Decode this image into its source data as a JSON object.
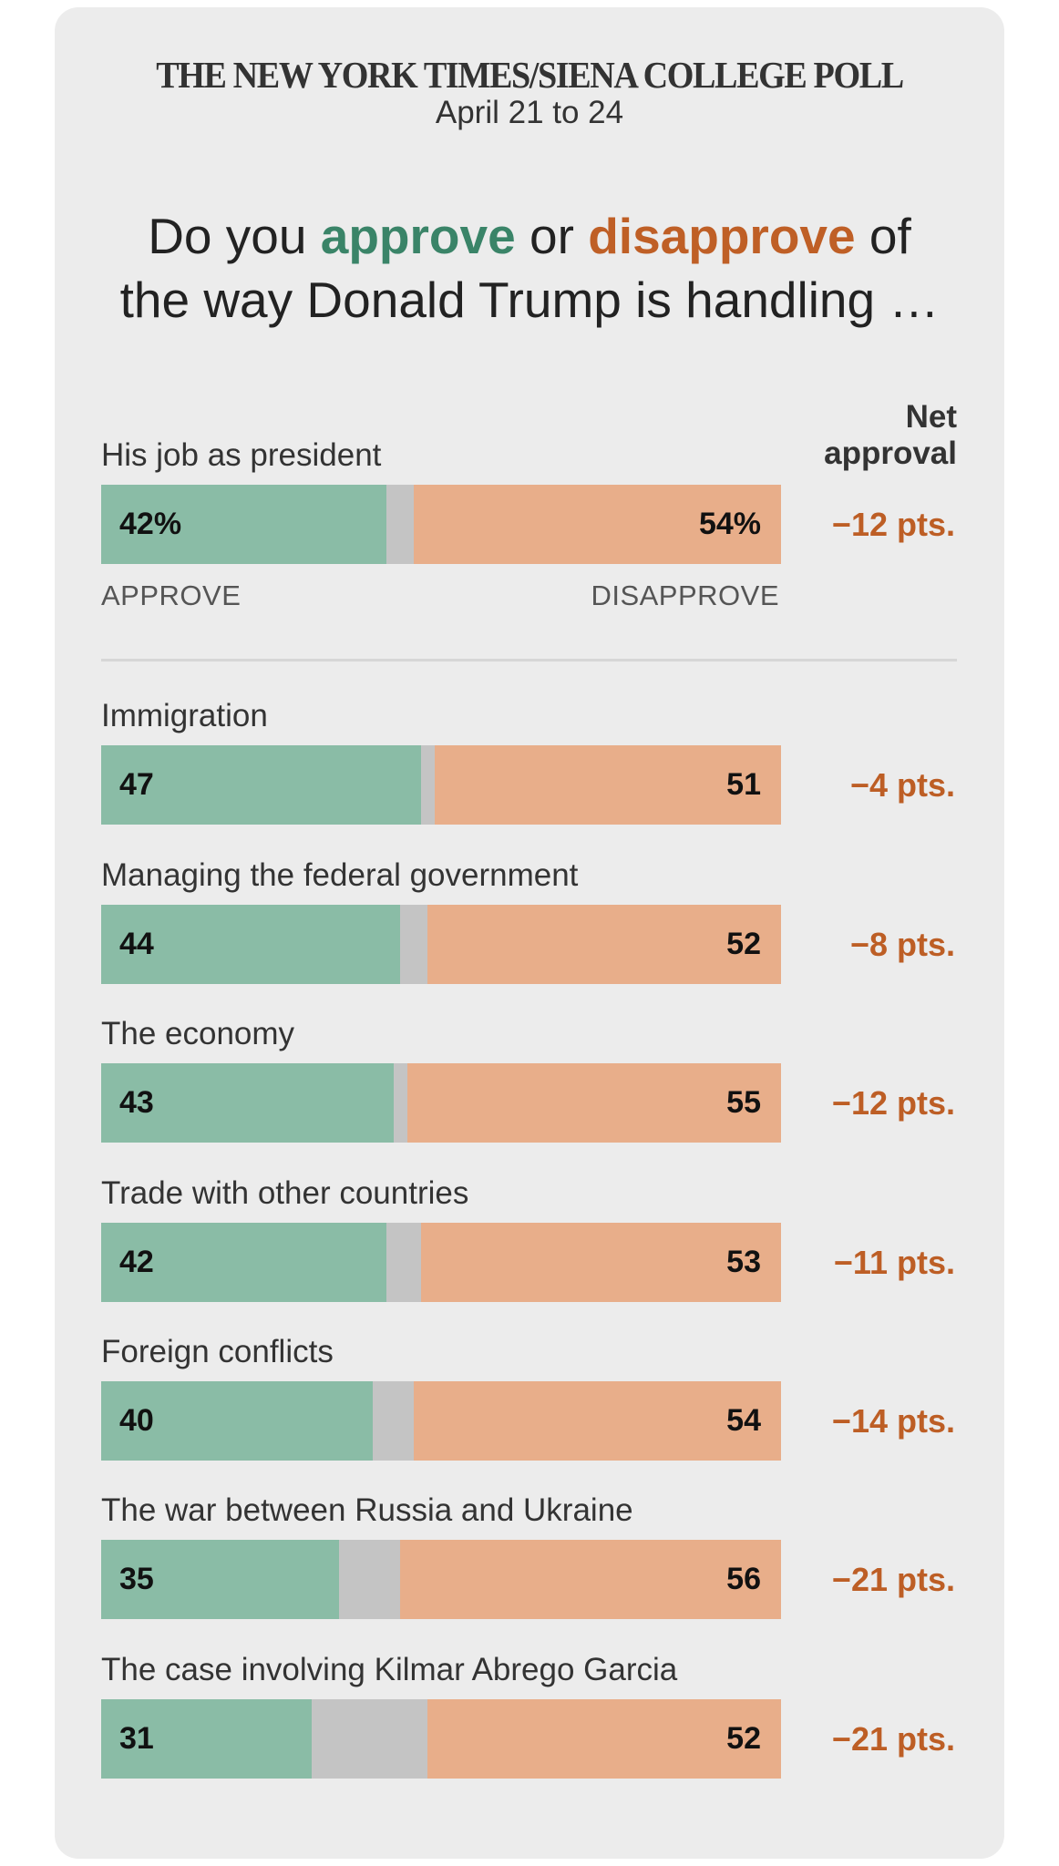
{
  "header": {
    "title": "THE NEW YORK TIMES/SIENA COLLEGE POLL",
    "date": "April 21 to 24"
  },
  "question": {
    "part1": "Do you ",
    "approve": "approve",
    "part2": " or ",
    "disapprove": "disapprove",
    "part3": " of",
    "line2": "the way Donald Trump is handling …"
  },
  "net_header": {
    "line1": "Net",
    "line2": "approval"
  },
  "axis": {
    "approve": "APPROVE",
    "disapprove": "DISAPPROVE"
  },
  "colors": {
    "approve": "#8abca6",
    "disapprove": "#e8ae8a",
    "undecided": "#c4c4c4",
    "approve_text": "#3a8468",
    "disapprove_text": "#bf5f26",
    "net_text": "#bd5e25",
    "card_bg": "#ececec"
  },
  "chart_data": {
    "type": "bar",
    "orientation": "horizontal-stacked",
    "title": "THE NEW YORK TIMES/SIENA COLLEGE POLL",
    "subtitle": "April 21 to 24",
    "question": "Do you approve or disapprove of the way Donald Trump is handling …",
    "series_names": [
      "Approve",
      "Disapprove"
    ],
    "xlim": [
      0,
      100
    ],
    "rows": [
      {
        "label": "His job as president",
        "approve": 42,
        "disapprove": 54,
        "approve_label": "42%",
        "disapprove_label": "54%",
        "net": "−12 pts."
      },
      {
        "label": "Immigration",
        "approve": 47,
        "disapprove": 51,
        "approve_label": "47",
        "disapprove_label": "51",
        "net": "−4 pts."
      },
      {
        "label": "Managing the federal government",
        "approve": 44,
        "disapprove": 52,
        "approve_label": "44",
        "disapprove_label": "52",
        "net": "−8 pts."
      },
      {
        "label": "The economy",
        "approve": 43,
        "disapprove": 55,
        "approve_label": "43",
        "disapprove_label": "55",
        "net": "−12 pts."
      },
      {
        "label": "Trade with other countries",
        "approve": 42,
        "disapprove": 53,
        "approve_label": "42",
        "disapprove_label": "53",
        "net": "−11 pts."
      },
      {
        "label": "Foreign conflicts",
        "approve": 40,
        "disapprove": 54,
        "approve_label": "40",
        "disapprove_label": "54",
        "net": "−14 pts."
      },
      {
        "label": "The war between Russia and Ukraine",
        "approve": 35,
        "disapprove": 56,
        "approve_label": "35",
        "disapprove_label": "56",
        "net": "−21 pts."
      },
      {
        "label": "The case involving Kilmar Abrego Garcia",
        "approve": 31,
        "disapprove": 52,
        "approve_label": "31",
        "disapprove_label": "52",
        "net": "−21 pts."
      }
    ]
  }
}
